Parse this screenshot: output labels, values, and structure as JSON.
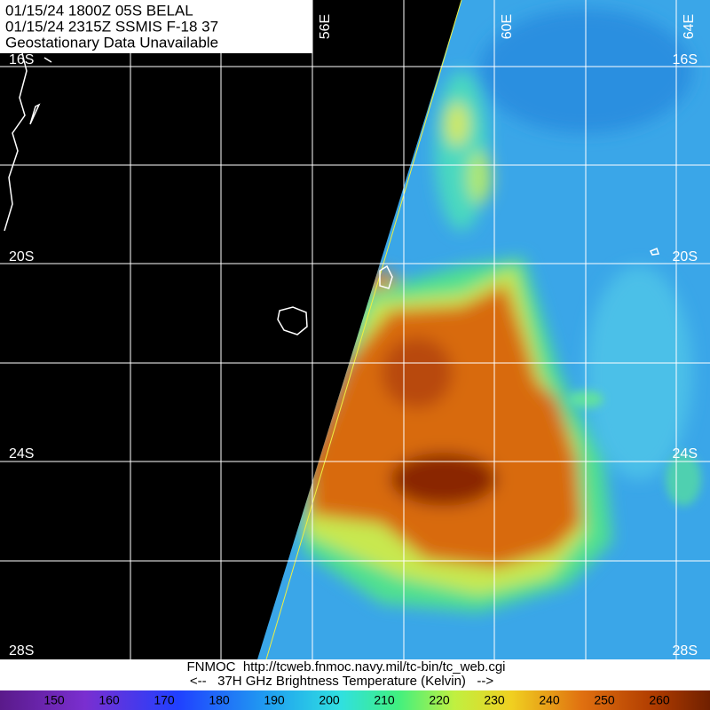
{
  "header": {
    "lines": [
      "01/15/24 1800Z  05S BELAL",
      "01/15/24 2315Z  SSMIS F-18 37",
      "Geostationary Data Unavailable"
    ]
  },
  "grid": {
    "longitudes": [
      "56E",
      "60E",
      "64E"
    ],
    "latitudes": [
      "16S",
      "20S",
      "24S",
      "28S"
    ]
  },
  "footer": {
    "source": "FNMOC  http://tcweb.fnmoc.navy.mil/tc-bin/tc_web.cgi",
    "legend_title": "<--   37H GHz Brightness Temperature (Kelvin)   -->"
  },
  "colorbar": {
    "ticks": [
      "150",
      "160",
      "170",
      "180",
      "190",
      "200",
      "210",
      "220",
      "230",
      "240",
      "250",
      "260"
    ]
  }
}
